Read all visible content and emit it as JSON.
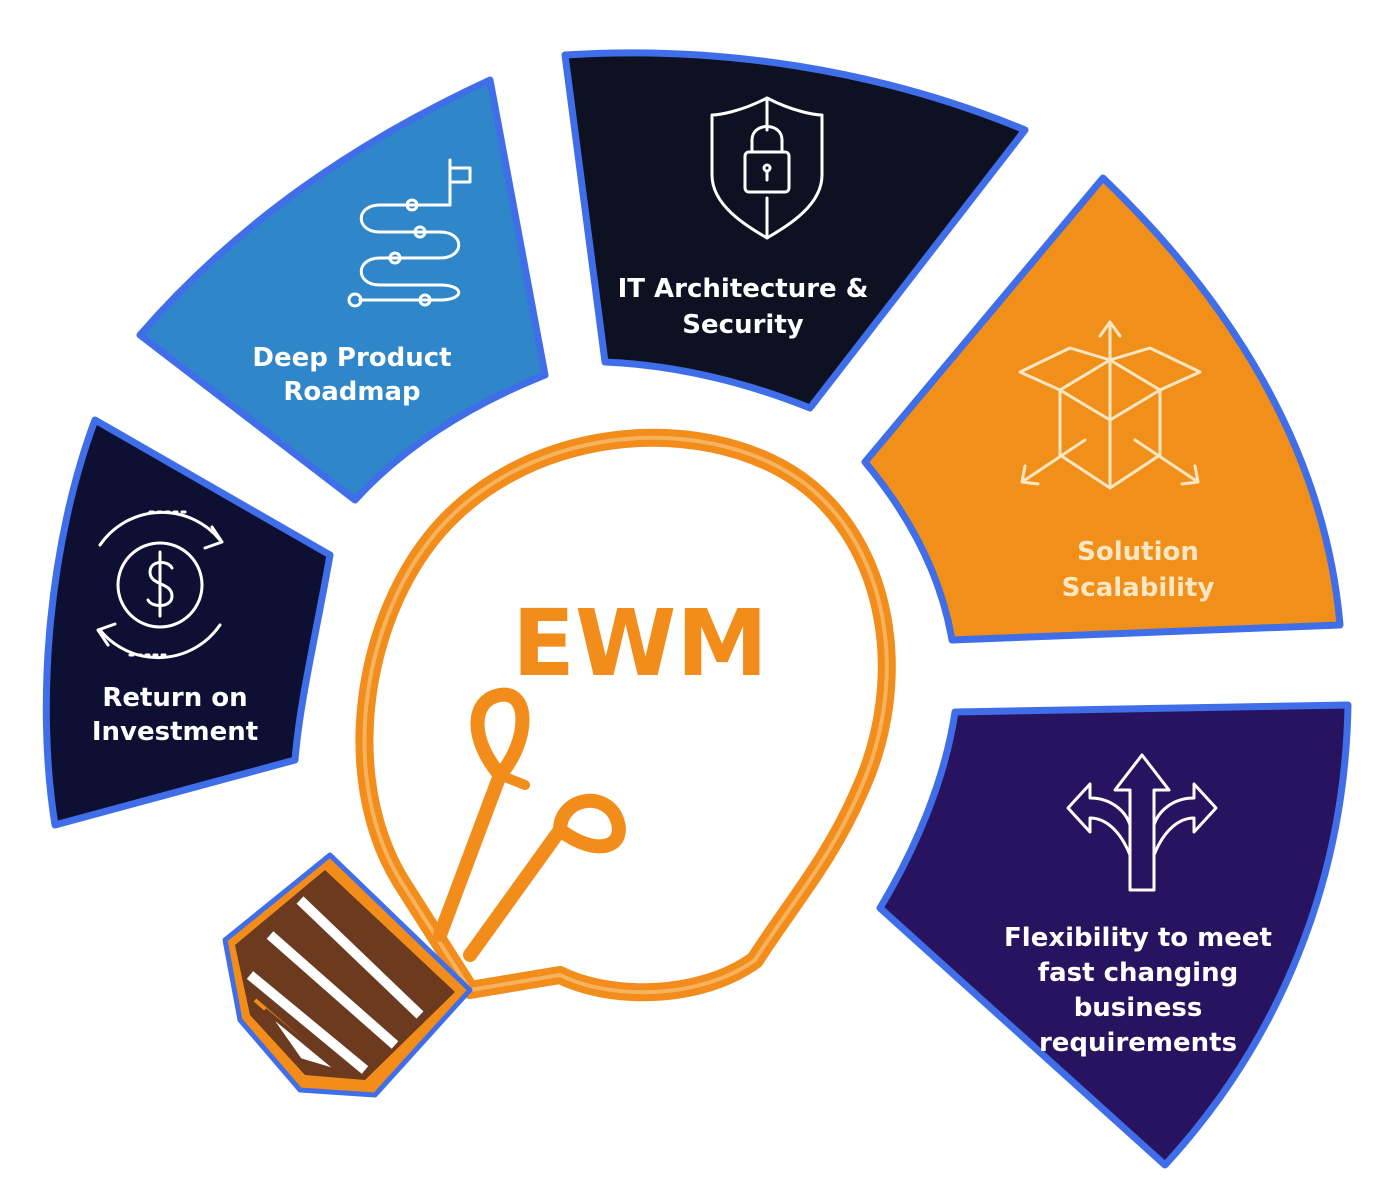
{
  "center": {
    "label": "EWM",
    "color": "#f28c1a"
  },
  "segments": [
    {
      "id": "return-on-investment",
      "lines": [
        "Return on",
        "Investment"
      ],
      "color": "#0d1032",
      "icon": "dollar-cycle-icon"
    },
    {
      "id": "deep-product-roadmap",
      "lines": [
        "Deep Product",
        "Roadmap"
      ],
      "color": "#2f86c9",
      "icon": "roadmap-path-icon"
    },
    {
      "id": "it-architecture-security",
      "lines": [
        "IT Architecture &",
        "Security"
      ],
      "color": "#0d1121",
      "icon": "shield-lock-icon"
    },
    {
      "id": "solution-scalability",
      "lines": [
        "Solution",
        "Scalability"
      ],
      "color": "#f18f1b",
      "icon": "box-arrows-icon"
    },
    {
      "id": "flexibility",
      "lines": [
        "Flexibility to meet",
        "fast changing",
        "business",
        "requirements"
      ],
      "color": "#27135f",
      "icon": "split-arrows-icon"
    }
  ],
  "colors": {
    "border": "#3f6ee8",
    "bulb_outline": "#f28c1a",
    "bulb_base": "#6b3a1f"
  }
}
